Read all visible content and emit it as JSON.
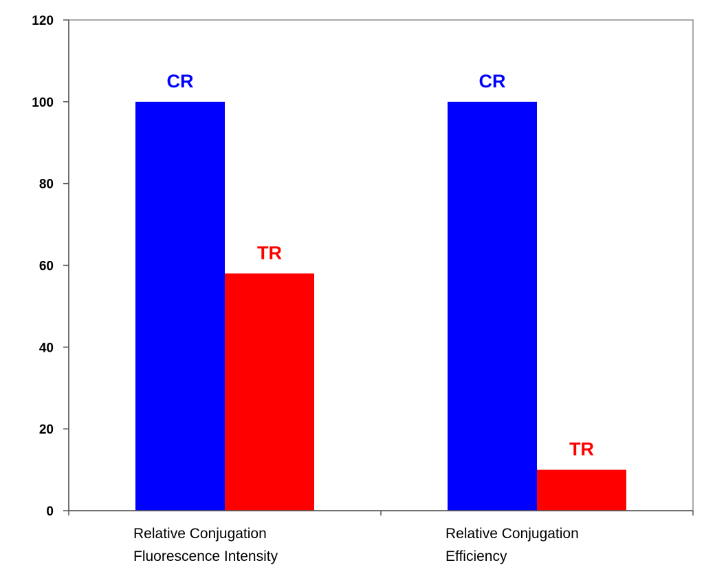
{
  "chart_data": {
    "type": "bar",
    "categories": [
      [
        "Relative Conjugation",
        "Fluorescence  Intensity"
      ],
      [
        "Relative Conjugation",
        "Efficiency"
      ]
    ],
    "series": [
      {
        "values": [
          100,
          100
        ],
        "color": "#0000ff",
        "data_label": "CR"
      },
      {
        "values": [
          58,
          10
        ],
        "color": "#ff0000",
        "data_label": "TR"
      }
    ],
    "ylim": [
      0,
      120
    ],
    "yticks": [
      0,
      20,
      40,
      60,
      80,
      100,
      120
    ],
    "grid": false,
    "legend": "none",
    "title": "",
    "xlabel": "",
    "ylabel": ""
  }
}
